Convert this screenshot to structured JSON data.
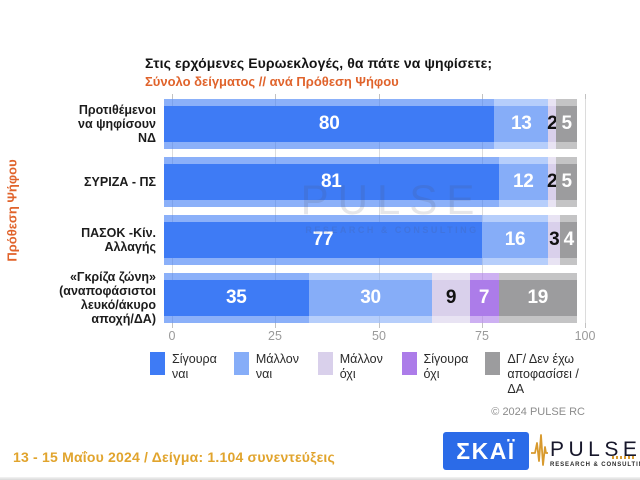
{
  "header": {
    "title": "Στις ερχόμενες Ευρωεκλογές, θα πάτε να ψηφίσετε;",
    "subtitle": "Σύνολο δείγματος // ανά Πρόθεση Ψήφου"
  },
  "y_axis_label": "Πρόθεση Ψήφου",
  "chart_data": {
    "type": "bar",
    "stacked": true,
    "orientation": "horizontal",
    "categories": [
      "Προτιθέμενοι να ψηφίσουν ΝΔ",
      "ΣΥΡΙΖΑ - ΠΣ",
      "ΠΑΣΟΚ -Κίν. Αλλαγής",
      "«Γκρίζα ζώνη» (αναποφάσιστοι λευκό/άκυρο αποχή/ΔΑ)"
    ],
    "categories_display": [
      "Προτιθέμενοι\nνα ψηφίσουν\nΝΔ",
      "ΣΥΡΙΖΑ - ΠΣ",
      "ΠΑΣΟΚ -Κίν.\nΑλλαγής",
      "«Γκρίζα ζώνη»\n(αναποφάσιστοι\nλευκό/άκυρο\nαποχή/ΔΑ)"
    ],
    "series": [
      {
        "name": "Σίγουρα ναι",
        "color": "#3e7bf5",
        "label_color": "#ffffff",
        "values": [
          80,
          81,
          77,
          35
        ]
      },
      {
        "name": "Μάλλον ναι",
        "color": "#86adf8",
        "label_color": "#ffffff",
        "values": [
          13,
          12,
          16,
          30
        ]
      },
      {
        "name": "Μάλλον όχι",
        "color": "#d9d0eb",
        "label_color": "#111111",
        "values": [
          2,
          2,
          3,
          9
        ]
      },
      {
        "name": "Σίγουρα όχι",
        "color": "#ac7ce9",
        "label_color": "#ffffff",
        "values": [
          0,
          0,
          0,
          7
        ]
      },
      {
        "name": "ΔΓ/ Δεν έχω αποφασίσει / ΔΑ",
        "color": "#9c9c9e",
        "label_color": "#ffffff",
        "values": [
          5,
          5,
          4,
          19
        ]
      }
    ],
    "xlim": [
      0,
      100
    ],
    "x_ticks": [
      0,
      25,
      50,
      75,
      100
    ],
    "grid": true,
    "legend_position": "bottom"
  },
  "watermark": {
    "text": "PULSE",
    "subtext": "RESEARCH & CONSULTING"
  },
  "copyright": "© 2024 PULSE RC",
  "footer": {
    "text": "13 - 15 Μαΐου 2024  /  Δείγμα:  1.104 συνεντεύξεις"
  },
  "logos": {
    "skai": {
      "text": "ΣΚΑΪ",
      "background": "#2b6be8"
    },
    "pulse": {
      "name": "PULSE",
      "tagline": "RESEARCH & CONSULTING",
      "icon": "pulse-waveform",
      "accent": "#d89a2e"
    }
  },
  "colors": {
    "accent_orange": "#e0632b",
    "footer_gold": "#e1a42d",
    "grid": "#dcdcdc",
    "axis_text": "#9a9a9a"
  }
}
